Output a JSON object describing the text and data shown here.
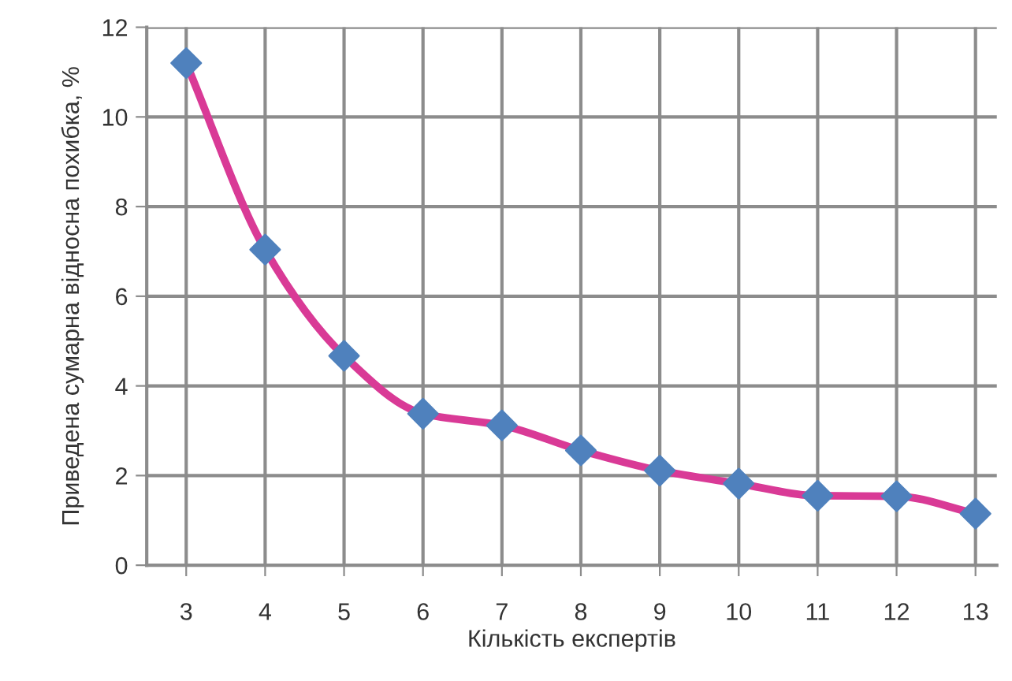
{
  "chart_data": {
    "type": "line",
    "xlabel": "Кількість експертів",
    "ylabel": "Приведена сумарна відносна похибка, %",
    "categories": [
      "3",
      "4",
      "5",
      "6",
      "7",
      "8",
      "9",
      "10",
      "11",
      "12",
      "13"
    ],
    "series": [
      {
        "color": "#d93a96",
        "colors": [
          "#4f81bd",
          "#4f81bd",
          "#4f81bd",
          "#4f81bd",
          "#4f81bd",
          "#4f81bd",
          "#4f81bd",
          "#4f81bd",
          "#4f81bd",
          "#4f81bd",
          "#4f81bd"
        ],
        "values": [
          11.2,
          7.04,
          4.67,
          3.38,
          3.12,
          2.56,
          2.11,
          1.82,
          1.55,
          1.54,
          1.15
        ]
      }
    ],
    "ylim": [
      0,
      12
    ],
    "yticks": [
      0,
      2,
      4,
      6,
      8,
      10,
      12
    ],
    "grid": true,
    "marker": "diamond",
    "line_style": "solid"
  }
}
